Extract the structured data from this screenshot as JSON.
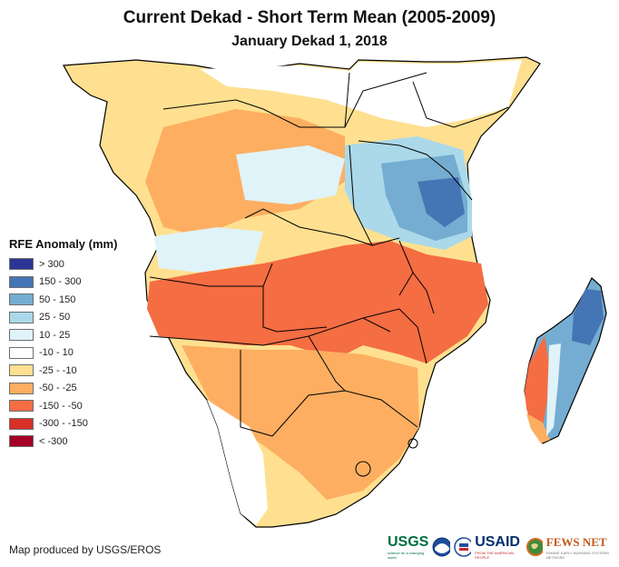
{
  "title": "Current Dekad - Short Term Mean (2005-2009)",
  "subtitle": "January Dekad 1, 2018",
  "legend": {
    "title": "RFE Anomaly (mm)",
    "items": [
      {
        "label": "> 300",
        "color": "#2c3495"
      },
      {
        "label": "150 - 300",
        "color": "#4575b4"
      },
      {
        "label": "50 - 150",
        "color": "#74add1"
      },
      {
        "label": "25 - 50",
        "color": "#abd9e9"
      },
      {
        "label": "10 - 25",
        "color": "#e0f3f8"
      },
      {
        "label": "-10 - 10",
        "color": "#ffffff"
      },
      {
        "label": "-25 - -10",
        "color": "#fee090"
      },
      {
        "label": "-50 - -25",
        "color": "#fdae61"
      },
      {
        "label": "-150 - -50",
        "color": "#f46d43"
      },
      {
        "label": "-300 - -150",
        "color": "#d73027"
      },
      {
        "label": "< -300",
        "color": "#a50026"
      }
    ]
  },
  "credit": "Map produced by USGS/EROS",
  "logos": {
    "usgs": "USGS",
    "usgs_tagline": "science for a changing world",
    "noaa": "NOAA",
    "usaid": "USAID",
    "usaid_tagline": "FROM THE AMERICAN PEOPLE",
    "fews": "FEWS NET",
    "fews_tagline": "FAMINE EARLY WARNING SYSTEMS NETWORK"
  }
}
